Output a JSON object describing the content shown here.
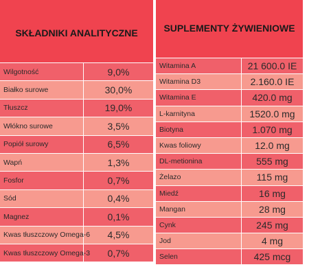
{
  "analytical": {
    "title": "SKŁADNIKI ANALITYCZNE",
    "rows": [
      {
        "label": "Wilgotność",
        "value": "9,0%"
      },
      {
        "label": "Białko surowe",
        "value": "30,0%"
      },
      {
        "label": "Tłuszcz",
        "value": "19,0%"
      },
      {
        "label": "Włókno surowe",
        "value": "3,5%"
      },
      {
        "label": "Popiół surowy",
        "value": "6,5%"
      },
      {
        "label": "Wapń",
        "value": "1,3%"
      },
      {
        "label": "Fosfor",
        "value": "0,7%"
      },
      {
        "label": "Sód",
        "value": "0,4%"
      },
      {
        "label": "Magnez",
        "value": "0,1%"
      },
      {
        "label": "Kwas tłuszczowy Omega-6",
        "value": "4,5%"
      },
      {
        "label": "Kwas tłuszczowy Omega-3",
        "value": "0,7%"
      }
    ]
  },
  "supplements": {
    "title": "SUPLEMENTY ŻYWIENIOWE",
    "rows": [
      {
        "label": "Witamina A",
        "value": "21 600.0 IE"
      },
      {
        "label": "Witamina D3",
        "value": "2.160.0 IE"
      },
      {
        "label": "Witamina E",
        "value": "420.0 mg"
      },
      {
        "label": "L-karnityna",
        "value": "1520.0 mg"
      },
      {
        "label": "Biotyna",
        "value": "1.070 mg"
      },
      {
        "label": "Kwas foliowy",
        "value": "12.0 mg"
      },
      {
        "label": "DL-metionina",
        "value": "555 mg"
      },
      {
        "label": "Żelazo",
        "value": "115 mg"
      },
      {
        "label": "Miedź",
        "value": "16 mg"
      },
      {
        "label": "Mangan",
        "value": "28 mg"
      },
      {
        "label": "Cynk",
        "value": "245 mg"
      },
      {
        "label": "Jod",
        "value": "4 mg"
      },
      {
        "label": "Selen",
        "value": "425 mcg"
      }
    ]
  },
  "colors": {
    "header": "#f0434f",
    "row_dark": "#f0606a",
    "row_light": "#f79a8f"
  }
}
